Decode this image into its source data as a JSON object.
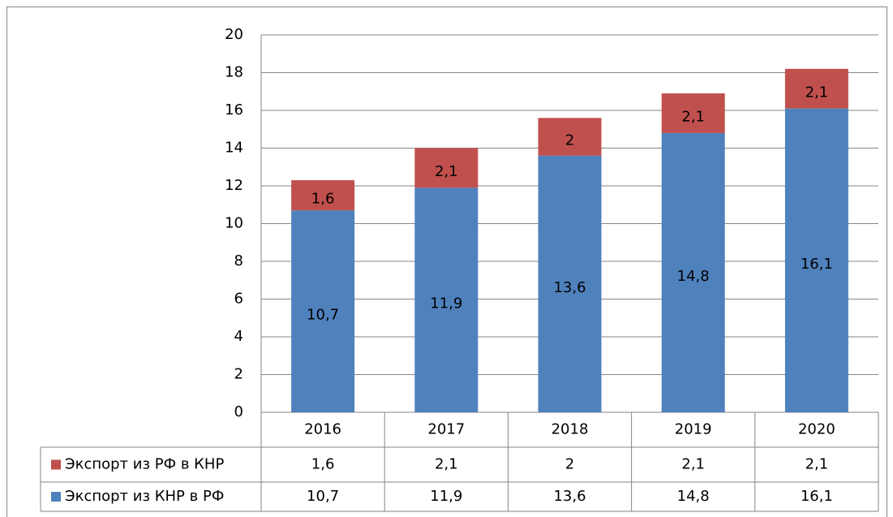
{
  "chart_data": {
    "type": "stacked_bar",
    "categories": [
      "2016",
      "2017",
      "2018",
      "2019",
      "2020"
    ],
    "series": [
      {
        "name": "Экспорт из КНР в РФ",
        "color": "#4f81bd",
        "values": [
          10.7,
          11.9,
          13.6,
          14.8,
          16.1
        ],
        "value_labels": [
          "10,7",
          "11,9",
          "13,6",
          "14,8",
          "16,1"
        ]
      },
      {
        "name": "Экспорт из РФ в КНР",
        "color": "#c0504d",
        "values": [
          1.6,
          2.1,
          2,
          2.1,
          2.1
        ],
        "value_labels": [
          "1,6",
          "2,1",
          "2",
          "2,1",
          "2,1"
        ]
      }
    ],
    "ylim": [
      0,
      20
    ],
    "yticks": [
      0,
      2,
      4,
      6,
      8,
      10,
      12,
      14,
      16,
      18,
      20
    ],
    "grid": true,
    "data_table": true
  }
}
